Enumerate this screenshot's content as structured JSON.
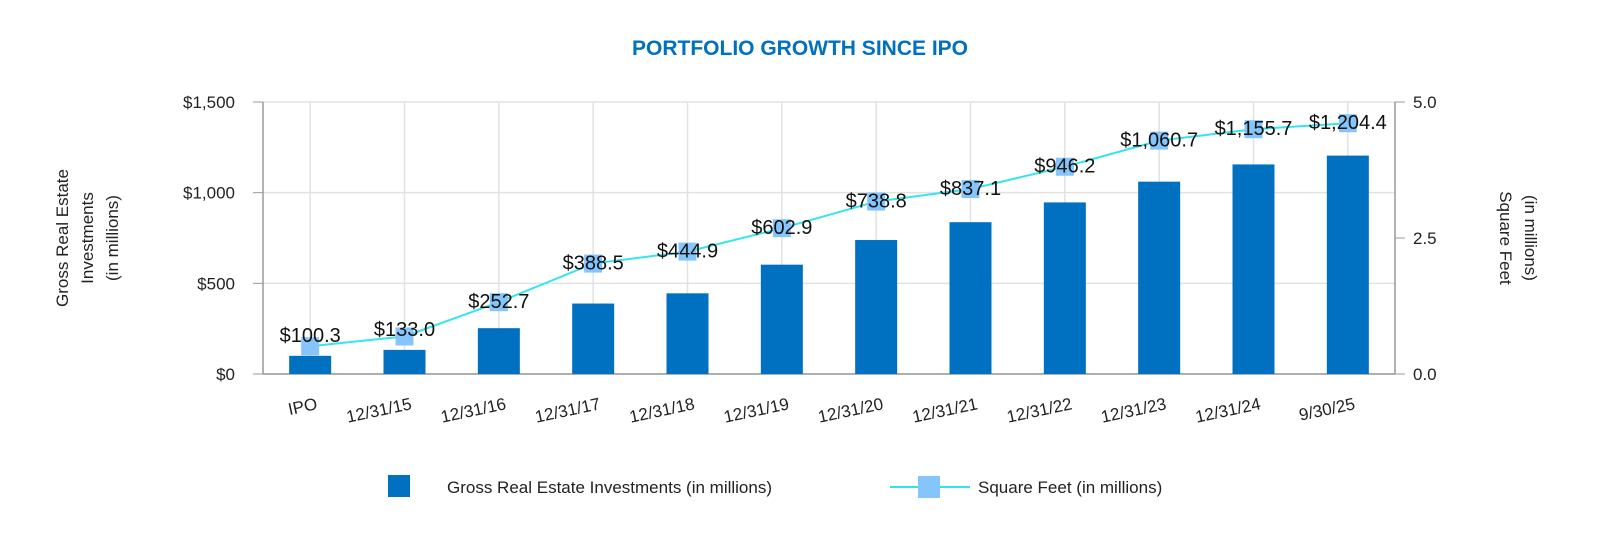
{
  "chart_data": {
    "type": "bar+line",
    "title": "PORTFOLIO GROWTH SINCE IPO",
    "categories": [
      "IPO",
      "12/31/15",
      "12/31/16",
      "12/31/17",
      "12/31/18",
      "12/31/19",
      "12/31/20",
      "12/31/21",
      "12/31/22",
      "12/31/23",
      "12/31/24",
      "9/30/25"
    ],
    "series": [
      {
        "name": "Gross Real Estate Investments (in millions)",
        "type": "bar",
        "axis": "left",
        "color": "#0070c0",
        "values": [
          100.3,
          133.0,
          252.7,
          388.5,
          444.9,
          602.9,
          738.8,
          837.1,
          946.2,
          1060.7,
          1155.7,
          1204.4
        ],
        "labels": [
          "$100.3",
          "$133.0",
          "$252.7",
          "$388.5",
          "$444.9",
          "$602.9",
          "$738.8",
          "$837.1",
          "$946.2",
          "$1,060.7",
          "$1,155.7",
          "$1,204.4"
        ]
      },
      {
        "name": "Square Feet (in millions)",
        "type": "line",
        "axis": "right",
        "color": "#33e6ee",
        "marker_color": "#85c5fb",
        "values": [
          0.51,
          0.69,
          1.32,
          2.03,
          2.25,
          2.68,
          3.17,
          3.4,
          3.81,
          4.29,
          4.5,
          4.61
        ]
      }
    ],
    "ylabel_left": [
      "Gross Real Estate",
      "Investments",
      "(in millions)"
    ],
    "ylabel_right": [
      "Square Feet",
      "(in millions)"
    ],
    "ylim_left": [
      0,
      1500
    ],
    "yticks_left": [
      "$0",
      "$500",
      "$1,000",
      "$1,500"
    ],
    "ylim_right": [
      0,
      5
    ],
    "yticks_right": [
      "0.0",
      "2.5",
      "5.0"
    ],
    "grid": true,
    "legend": "bottom"
  }
}
